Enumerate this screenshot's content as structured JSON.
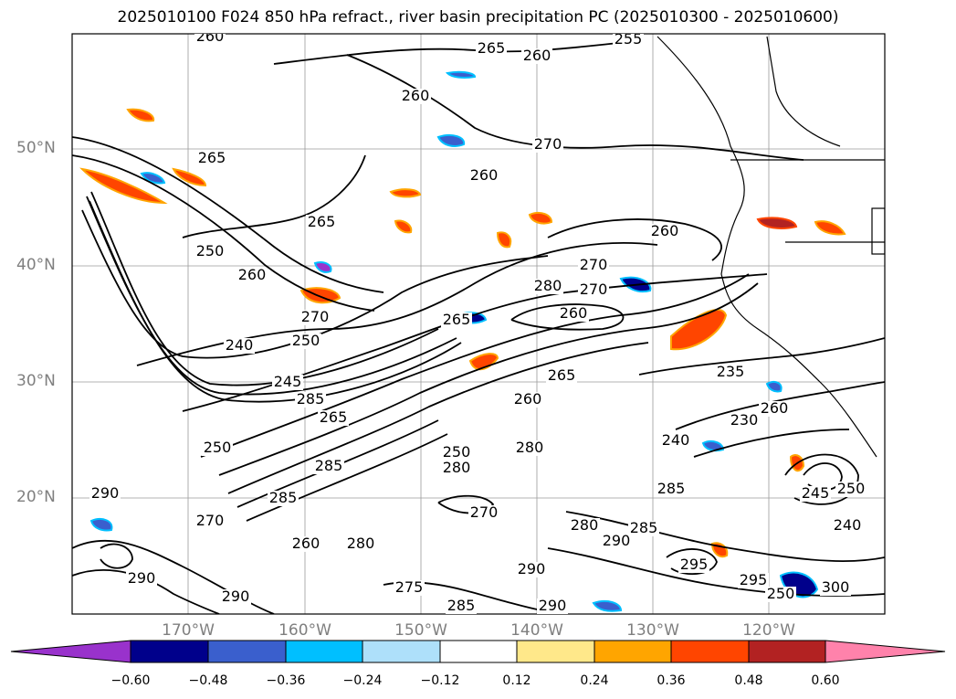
{
  "title": "2025010100 F024 850 hPa refract., river basin precipitation PC (2025010300 - 2025010600)",
  "lat_labels": [
    "50°N",
    "40°N",
    "30°N",
    "20°N"
  ],
  "lon_labels": [
    "170°W",
    "160°W",
    "150°W",
    "140°W",
    "130°W",
    "120°W"
  ],
  "colorbar": {
    "ticks": [
      "−0.60",
      "−0.48",
      "−0.36",
      "−0.24",
      "−0.12",
      "0.12",
      "0.24",
      "0.36",
      "0.48",
      "0.60"
    ],
    "colors": [
      "#9932CC",
      "#00008B",
      "#3A5FCD",
      "#00BFFF",
      "#AEE0FA",
      "#FFFFFF",
      "#FFE88A",
      "#FFA500",
      "#FF4500",
      "#B22222",
      "#FF82AB"
    ]
  },
  "contour_labels": [
    "260",
    "255",
    "265",
    "260",
    "260",
    "270",
    "265",
    "260",
    "265",
    "260",
    "250",
    "260",
    "270",
    "280",
    "270",
    "260",
    "265",
    "270",
    "240",
    "250",
    "245",
    "285",
    "265",
    "260",
    "235",
    "230",
    "240",
    "265",
    "250",
    "285",
    "280",
    "250",
    "280",
    "245",
    "250",
    "285",
    "290",
    "270",
    "260",
    "280",
    "290",
    "295",
    "290",
    "290",
    "275",
    "285",
    "290",
    "285",
    "270",
    "280",
    "285",
    "290",
    "295",
    "250",
    "240",
    "260",
    "300"
  ]
}
